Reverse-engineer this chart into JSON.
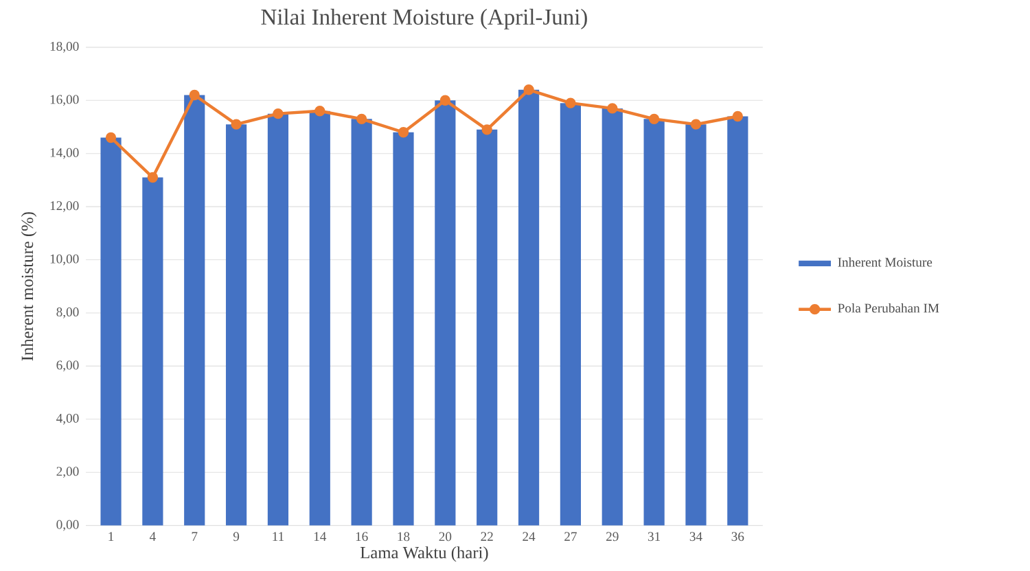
{
  "chart_data": {
    "type": "bar",
    "title": "Nilai Inherent Moisture (April-Juni)",
    "xlabel": "Lama Waktu (hari)",
    "ylabel": "Inherent moisture (%)",
    "categories": [
      "1",
      "4",
      "7",
      "9",
      "11",
      "14",
      "16",
      "18",
      "20",
      "22",
      "24",
      "27",
      "29",
      "31",
      "34",
      "36"
    ],
    "series": [
      {
        "name": "Inherent Moisture",
        "color": "#4472c4",
        "values": [
          14.6,
          13.1,
          16.2,
          15.1,
          15.5,
          15.6,
          15.3,
          14.8,
          16.0,
          14.9,
          16.4,
          15.9,
          15.7,
          15.3,
          15.1,
          15.4
        ]
      },
      {
        "name": "Pola Perubahan IM",
        "type": "line",
        "color": "#ed7d31",
        "marker": "circle",
        "values": [
          14.6,
          13.1,
          16.2,
          15.1,
          15.5,
          15.6,
          15.3,
          14.8,
          16.0,
          14.9,
          16.4,
          15.9,
          15.7,
          15.3,
          15.1,
          15.4
        ]
      }
    ],
    "ylim": [
      0,
      18
    ],
    "yticks": [
      {
        "value": 0,
        "label": "0,00"
      },
      {
        "value": 2,
        "label": "2,00"
      },
      {
        "value": 4,
        "label": "4,00"
      },
      {
        "value": 6,
        "label": "6,00"
      },
      {
        "value": 8,
        "label": "8,00"
      },
      {
        "value": 10,
        "label": "10,00"
      },
      {
        "value": 12,
        "label": "12,00"
      },
      {
        "value": 14,
        "label": "14,00"
      },
      {
        "value": 16,
        "label": "16,00"
      },
      {
        "value": 18,
        "label": "18,00"
      }
    ],
    "grid": "y",
    "legend": "right"
  }
}
